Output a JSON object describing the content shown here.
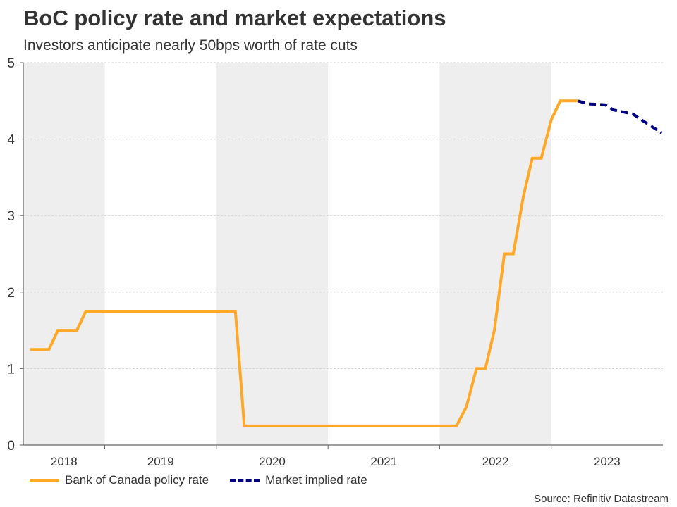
{
  "chart_data": {
    "type": "line",
    "title": "BoC policy rate and market expectations",
    "subtitle": "Investors anticipate nearly 50bps worth of rate cuts",
    "xlabel": "",
    "ylabel": "",
    "ylim": [
      0,
      5
    ],
    "xlim": [
      2018.27,
      2024.0
    ],
    "yticks": [
      "0",
      "1",
      "2",
      "3",
      "4",
      "5"
    ],
    "xticks": [
      {
        "label": "2018",
        "start": 2018.27,
        "end": 2019.0,
        "shaded": true
      },
      {
        "label": "2019",
        "start": 2019.0,
        "end": 2020.0,
        "shaded": false
      },
      {
        "label": "2020",
        "start": 2020.0,
        "end": 2021.0,
        "shaded": true
      },
      {
        "label": "2021",
        "start": 2021.0,
        "end": 2022.0,
        "shaded": false
      },
      {
        "label": "2022",
        "start": 2022.0,
        "end": 2023.0,
        "shaded": true
      },
      {
        "label": "2023",
        "start": 2023.0,
        "end": 2024.0,
        "shaded": false
      }
    ],
    "grid": true,
    "legend_position": "bottom-left",
    "series": [
      {
        "name": "Bank of Canada policy rate",
        "color": "#FFA726",
        "style": "solid",
        "points": [
          [
            2018.33,
            1.25
          ],
          [
            2018.5,
            1.25
          ],
          [
            2018.58,
            1.5
          ],
          [
            2018.75,
            1.5
          ],
          [
            2018.83,
            1.75
          ],
          [
            2020.17,
            1.75
          ],
          [
            2020.25,
            0.25
          ],
          [
            2022.15,
            0.25
          ],
          [
            2022.24,
            0.5
          ],
          [
            2022.33,
            1.0
          ],
          [
            2022.41,
            1.0
          ],
          [
            2022.49,
            1.5
          ],
          [
            2022.58,
            2.5
          ],
          [
            2022.66,
            2.5
          ],
          [
            2022.75,
            3.25
          ],
          [
            2022.83,
            3.75
          ],
          [
            2022.91,
            3.75
          ],
          [
            2023.0,
            4.25
          ],
          [
            2023.08,
            4.5
          ],
          [
            2023.24,
            4.5
          ]
        ]
      },
      {
        "name": "Market implied rate",
        "color": "#000080",
        "style": "dashed",
        "points": [
          [
            2023.24,
            4.5
          ],
          [
            2023.33,
            4.46
          ],
          [
            2023.48,
            4.45
          ],
          [
            2023.56,
            4.38
          ],
          [
            2023.73,
            4.33
          ],
          [
            2023.81,
            4.25
          ],
          [
            2023.99,
            4.08
          ]
        ]
      }
    ],
    "source": "Source: Refinitiv Datastream"
  },
  "header": {
    "title": "BoC policy rate and market expectations",
    "subtitle": "Investors anticipate nearly 50bps worth of rate cuts"
  },
  "legend": {
    "items": [
      {
        "label": "Bank of Canada policy rate"
      },
      {
        "label": "Market implied rate"
      }
    ]
  },
  "footer": {
    "source": "Source: Refinitiv Datastream"
  }
}
